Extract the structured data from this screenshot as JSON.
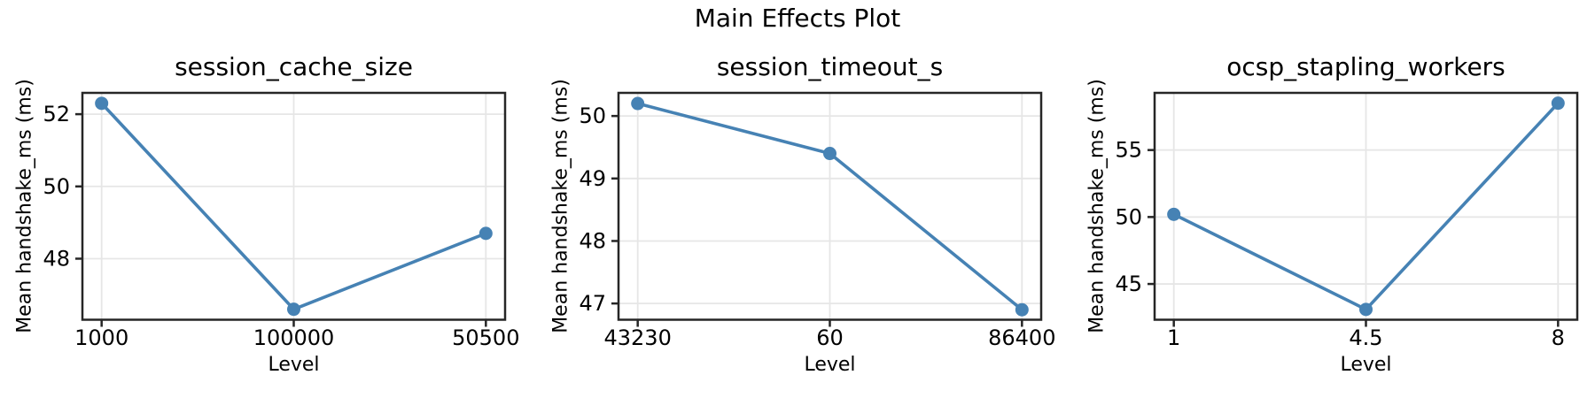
{
  "figure": {
    "title": "Main Effects Plot"
  },
  "colors": {
    "line": "#4682b4",
    "marker": "#4682b4",
    "grid": "#e6e6e6",
    "spine": "#262626",
    "text": "#000000",
    "background": "#ffffff"
  },
  "chart_data": [
    {
      "type": "line",
      "title": "session_cache_size",
      "xlabel": "Level",
      "ylabel": "Mean handshake_ms (ms)",
      "categories": [
        "1000",
        "100000",
        "50500"
      ],
      "values": [
        52.3,
        46.6,
        48.7
      ],
      "ylim": [
        46.31,
        52.59
      ],
      "yticks": [
        48,
        50,
        52
      ],
      "grid": true
    },
    {
      "type": "line",
      "title": "session_timeout_s",
      "xlabel": "Level",
      "ylabel": "Mean handshake_ms (ms)",
      "categories": [
        "43230",
        "60",
        "86400"
      ],
      "values": [
        50.2,
        49.4,
        46.9
      ],
      "ylim": [
        46.74,
        50.37
      ],
      "yticks": [
        47,
        48,
        49,
        50
      ],
      "grid": true
    },
    {
      "type": "line",
      "title": "ocsp_stapling_workers",
      "xlabel": "Level",
      "ylabel": "Mean handshake_ms (ms)",
      "categories": [
        "1",
        "4.5",
        "8"
      ],
      "values": [
        50.2,
        43.1,
        58.5
      ],
      "ylim": [
        42.33,
        59.27
      ],
      "yticks": [
        45,
        50,
        55
      ],
      "grid": true
    }
  ]
}
